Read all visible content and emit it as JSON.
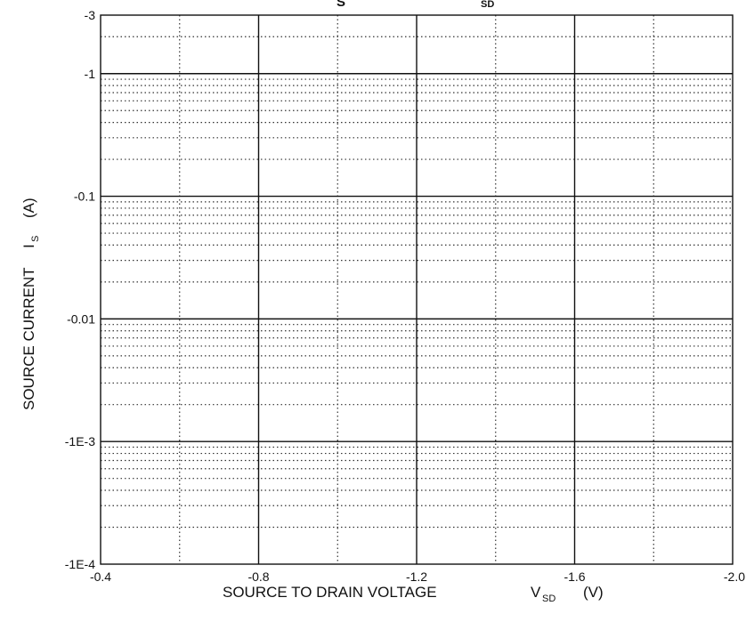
{
  "chart_data": {
    "type": "line",
    "title_fragments": [
      "S",
      "SD"
    ],
    "xlabel": "SOURCE TO DRAIN VOLTAGE",
    "xlabel_symbol": "V",
    "xlabel_subscript": "SD",
    "xlabel_unit": "(V)",
    "ylabel": "SOURCE CURRENT",
    "ylabel_symbol": "I",
    "ylabel_subscript": "S",
    "ylabel_unit": "(A)",
    "x_scale": "linear",
    "x_range": [
      -0.4,
      -2.0
    ],
    "x_ticks": [
      -0.4,
      -0.8,
      -1.2,
      -1.6,
      -2.0
    ],
    "x_tick_labels": [
      "-0.4",
      "-0.8",
      "-1.2",
      "-1.6",
      "-2.0"
    ],
    "x_minor_ticks": [
      -0.6,
      -1.0,
      -1.4,
      -1.8
    ],
    "y_scale": "log",
    "y_magnitude_range": [
      0.0001,
      3
    ],
    "y_ticks": [
      3,
      1,
      0.1,
      0.01,
      0.001,
      0.0001
    ],
    "y_tick_labels": [
      "-3",
      "-1",
      "-0.1",
      "-0.01",
      "-1E-3",
      "-1E-4"
    ],
    "grid": true,
    "series": []
  }
}
